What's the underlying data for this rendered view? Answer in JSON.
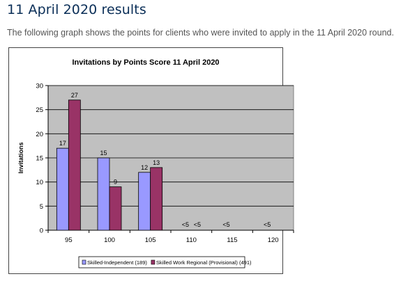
{
  "page": {
    "title": "11 April 2020 results",
    "intro": "The following graph shows the points for clients who were invited to apply in the 11 April 2020 round."
  },
  "colors": {
    "plot_background": "#c0c0c0",
    "series_1": "#9999ff",
    "series_2": "#993366"
  },
  "chart_data": {
    "type": "bar",
    "title": "Invitations by Points Score 11 April 2020",
    "xlabel": "",
    "ylabel": "Invitations",
    "ylim": [
      0,
      30
    ],
    "yticks": [
      0,
      5,
      10,
      15,
      20,
      25,
      30
    ],
    "grid": true,
    "legend": "bottom",
    "categories": [
      "95",
      "100",
      "105",
      "110",
      "115",
      "120"
    ],
    "series": [
      {
        "name": "Skilled-Independent (189)",
        "values": [
          17,
          15,
          12,
          null,
          null,
          null
        ],
        "labels": [
          "17",
          "15",
          "12",
          "<5",
          "<5",
          "<5"
        ]
      },
      {
        "name": "Skilled Work Regional (Provisional) (491)",
        "values": [
          27,
          9,
          13,
          null,
          null,
          null
        ],
        "labels": [
          "27",
          "9",
          "13",
          "<5",
          "",
          ""
        ]
      }
    ]
  }
}
